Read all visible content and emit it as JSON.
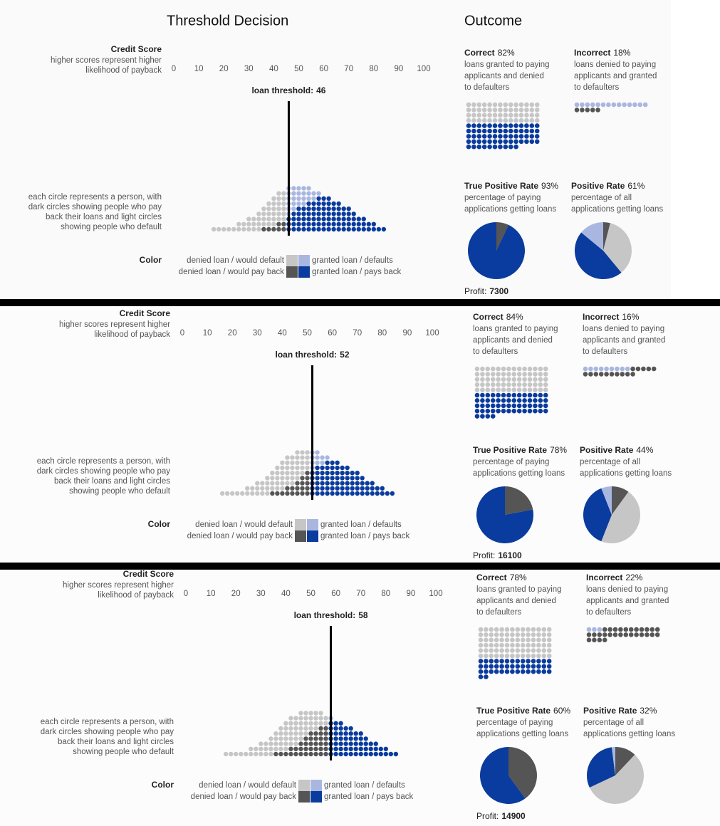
{
  "header": {
    "left_title": "Threshold Decision",
    "right_title": "Outcome"
  },
  "population": {
    "scores": [
      16,
      18,
      20,
      22,
      24,
      26,
      28,
      30,
      32,
      34,
      36,
      38,
      40,
      42,
      44,
      46,
      48,
      50,
      52,
      54,
      56,
      58,
      60,
      62,
      64,
      66,
      68,
      70,
      72,
      74,
      76,
      78,
      80,
      82,
      84
    ],
    "pays_back": [
      0,
      0,
      0,
      0,
      0,
      0,
      0,
      0,
      0,
      0,
      1,
      1,
      1,
      2,
      2,
      3,
      4,
      5,
      5,
      6,
      6,
      7,
      7,
      7,
      6,
      6,
      5,
      5,
      4,
      3,
      3,
      2,
      2,
      1,
      1
    ],
    "defaults": [
      1,
      1,
      1,
      1,
      1,
      2,
      2,
      3,
      3,
      4,
      4,
      5,
      6,
      6,
      6,
      6,
      5,
      4,
      4,
      3,
      2,
      1,
      0,
      0,
      0,
      0,
      0,
      0,
      0,
      0,
      0,
      0,
      0,
      0,
      0
    ]
  },
  "legend": {
    "title": "Color",
    "items": [
      {
        "label": "denied loan / would default",
        "color": "#c6c6c6"
      },
      {
        "label": "granted loan / defaults",
        "color": "#a9b7e0"
      },
      {
        "label": "denied loan / would pay back",
        "color": "#555555"
      },
      {
        "label": "granted loan / pays back",
        "color": "#0a3b9e"
      }
    ]
  },
  "panels": [
    {
      "credit_title": "Credit Score",
      "credit_desc": [
        "higher scores represent higher",
        "likelihood of payback"
      ],
      "xlim": [
        0,
        100
      ],
      "xticks": [
        0,
        10,
        20,
        30,
        40,
        50,
        60,
        70,
        80,
        90,
        100
      ],
      "threshold_label": "loan threshold:",
      "threshold": 46,
      "circle_desc": [
        "each circle represents a person, with",
        "dark circles showing people who pay",
        "back their loans and light circles",
        "showing people who default"
      ],
      "correct": {
        "title": "Correct",
        "rate": {
          "value": 82,
          "label": "82%"
        },
        "desc": [
          "loans granted to paying",
          "applicants and denied",
          "to defaulters"
        ],
        "counts": [
          56,
          66
        ]
      },
      "incorrect": {
        "title": "Incorrect",
        "rate": {
          "value": 18,
          "label": "18%"
        },
        "desc": [
          "loans denied to paying",
          "applicants and granted",
          "to defaulters"
        ],
        "counts": [
          14,
          5
        ]
      },
      "tpr": {
        "title": "True Positive Rate",
        "rate": {
          "value": 93,
          "label": "93%"
        },
        "desc": [
          "percentage of paying",
          "applications getting loans"
        ]
      },
      "positive_rate": {
        "title": "Positive Rate",
        "rate": {
          "value": 61,
          "label": "61%"
        },
        "desc": [
          "percentage of all",
          "applications getting loans"
        ],
        "slices": [
          4,
          35,
          47,
          14
        ]
      },
      "profit_label": "Profit:",
      "profit": 7300
    },
    {
      "credit_title": "Credit Score",
      "credit_desc": [
        "higher scores represent higher",
        "likelihood of payback"
      ],
      "xlim": [
        0,
        100
      ],
      "xticks": [
        0,
        10,
        20,
        30,
        40,
        50,
        60,
        70,
        80,
        90,
        100
      ],
      "threshold_label": "loan threshold:",
      "threshold": 52,
      "circle_desc": [
        "each circle represents a person, with",
        "dark circles showing people who pay",
        "back their loans and light circles",
        "showing people who default"
      ],
      "correct": {
        "title": "Correct",
        "rate": {
          "value": 84,
          "label": "84%"
        },
        "desc": [
          "loans granted to paying",
          "applicants and denied",
          "to defaulters"
        ],
        "counts": [
          70,
          60
        ]
      },
      "incorrect": {
        "title": "Incorrect",
        "rate": {
          "value": 16,
          "label": "16%"
        },
        "desc": [
          "loans denied to paying",
          "applicants and granted",
          "to defaulters"
        ],
        "counts": [
          9,
          15
        ]
      },
      "tpr": {
        "title": "True Positive Rate",
        "rate": {
          "value": 78,
          "label": "78%"
        },
        "desc": [
          "percentage of paying",
          "applications getting loans"
        ]
      },
      "positive_rate": {
        "title": "Positive Rate",
        "rate": {
          "value": 44,
          "label": "44%"
        },
        "desc": [
          "percentage of all",
          "applications getting loans"
        ],
        "slices": [
          10,
          46,
          38,
          6
        ]
      },
      "profit_label": "Profit:",
      "profit": 16100
    },
    {
      "credit_title": "Credit Score",
      "credit_desc": [
        "higher scores represent higher",
        "likelihood of payback"
      ],
      "xlim": [
        0,
        100
      ],
      "xticks": [
        0,
        10,
        20,
        30,
        40,
        50,
        60,
        70,
        80,
        90,
        100
      ],
      "threshold_label": "loan threshold:",
      "threshold": 58,
      "circle_desc": [
        "each circle represents a person, with",
        "dark circles showing people who pay",
        "back their loans and light circles",
        "showing people who default"
      ],
      "correct": {
        "title": "Correct",
        "rate": {
          "value": 78,
          "label": "78%"
        },
        "desc": [
          "loans granted to paying",
          "applicants and denied",
          "to defaulters"
        ],
        "counts": [
          84,
          44
        ]
      },
      "incorrect": {
        "title": "Incorrect",
        "rate": {
          "value": 22,
          "label": "22%"
        },
        "desc": [
          "loans denied to paying",
          "applicants and granted",
          "to defaulters"
        ],
        "counts": [
          3,
          29
        ]
      },
      "tpr": {
        "title": "True Positive Rate",
        "rate": {
          "value": 60,
          "label": "60%"
        },
        "desc": [
          "percentage of paying",
          "applications getting loans"
        ]
      },
      "positive_rate": {
        "title": "Positive Rate",
        "rate": {
          "value": 32,
          "label": "32%"
        },
        "desc": [
          "percentage of all",
          "applications getting loans"
        ],
        "slices": [
          12,
          56,
          30,
          2
        ]
      },
      "profit_label": "Profit:",
      "profit": 14900
    }
  ]
}
